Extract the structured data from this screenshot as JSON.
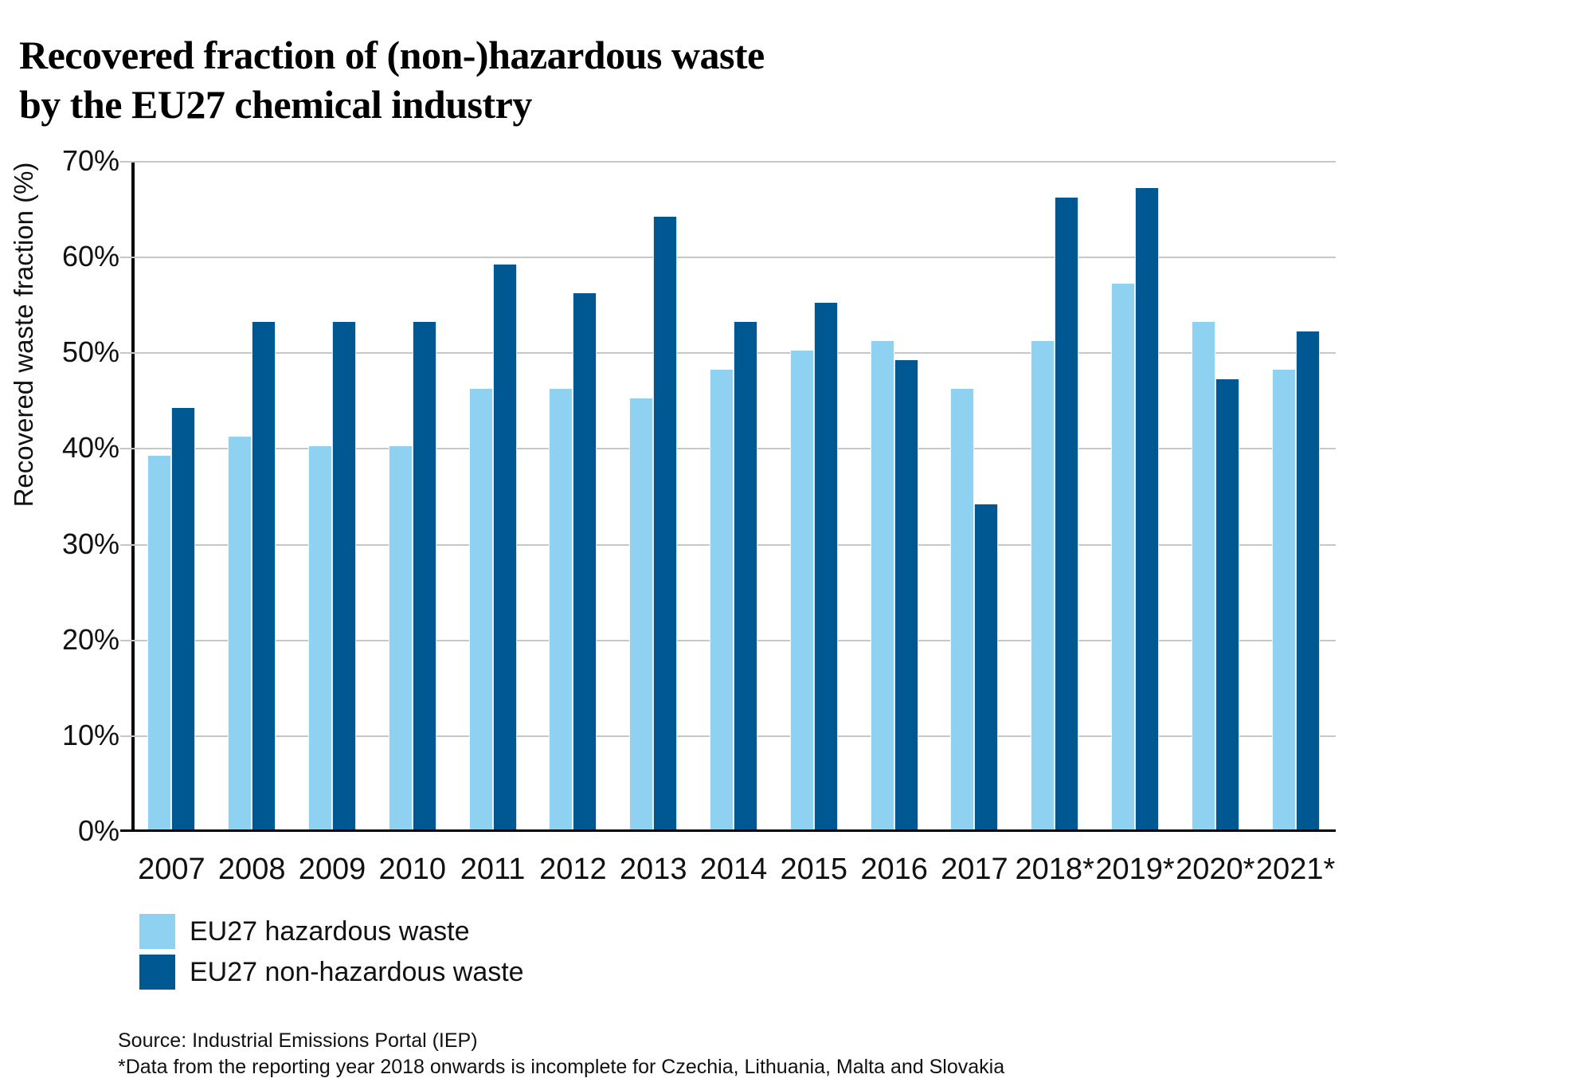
{
  "title": {
    "line1": "Recovered fraction of (non-)hazardous waste",
    "line2": "by the EU27 chemical industry"
  },
  "chart_data": {
    "type": "bar",
    "title": "Recovered fraction of (non-)hazardous waste by the EU27 chemical industry",
    "categories": [
      "2007",
      "2008",
      "2009",
      "2010",
      "2011",
      "2012",
      "2013",
      "2014",
      "2015",
      "2016",
      "2017",
      "2018*",
      "2019*",
      "2020*",
      "2021*"
    ],
    "series": [
      {
        "name": "EU27 hazardous waste",
        "color": "#8ED1F0",
        "values": [
          39,
          41,
          40,
          40,
          46,
          46,
          45,
          48,
          50,
          51,
          46,
          51,
          57,
          53,
          48
        ]
      },
      {
        "name": "EU27 non-hazardous waste",
        "color": "#005892",
        "values": [
          44,
          53,
          53,
          53,
          59,
          56,
          64,
          53,
          55,
          49,
          34,
          66,
          67,
          47,
          52
        ]
      }
    ],
    "xlabel": "",
    "ylabel": "Recovered waste fraction (%)",
    "ylim": [
      0,
      70
    ],
    "ytick_step": 10,
    "ytick_labels": [
      "0%",
      "10%",
      "20%",
      "30%",
      "40%",
      "50%",
      "60%",
      "70%"
    ],
    "grid": "horizontal",
    "legend_position": "bottom-left",
    "unit": "%"
  },
  "footer": {
    "source": "Source: Industrial Emissions Portal (IEP)",
    "footnote": "*Data from the reporting year 2018 onwards is incomplete for Czechia, Lithuania, Malta and Slovakia"
  },
  "colors": {
    "hazardous": "#8ED1F0",
    "non_hazardous": "#005892",
    "gridline": "#C8C8C8",
    "axis": "#000000",
    "text": "#111111",
    "background": "#FFFFFF"
  }
}
